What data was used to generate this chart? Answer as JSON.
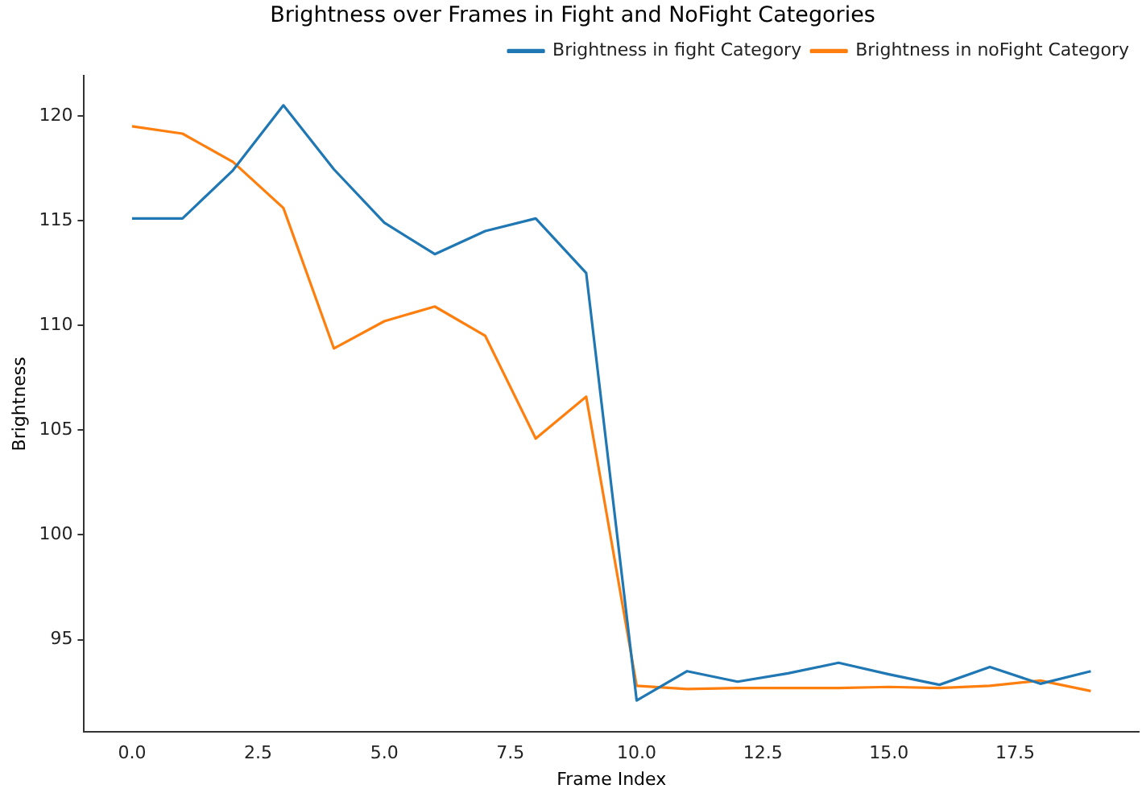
{
  "chart_data": {
    "type": "line",
    "title": "Brightness over Frames in Fight and NoFight Categories",
    "xlabel": "Frame Index",
    "ylabel": "Brightness",
    "x": [
      0,
      1,
      2,
      3,
      4,
      5,
      6,
      7,
      8,
      9,
      10,
      11,
      12,
      13,
      14,
      15,
      16,
      17,
      18,
      19
    ],
    "series": [
      {
        "name": "Brightness in fight Category",
        "color": "#1f77b4",
        "values": [
          115.1,
          115.1,
          117.4,
          120.5,
          117.45,
          114.9,
          113.4,
          114.5,
          115.1,
          112.5,
          92.1,
          93.5,
          93.0,
          93.4,
          93.9,
          93.35,
          92.85,
          93.7,
          92.9,
          93.5
        ]
      },
      {
        "name": "Brightness in noFight Category",
        "color": "#ff7f0e",
        "values": [
          119.5,
          119.15,
          117.8,
          115.6,
          108.9,
          110.2,
          110.9,
          109.5,
          104.6,
          106.6,
          92.8,
          92.65,
          92.7,
          92.7,
          92.7,
          92.75,
          92.7,
          92.8,
          93.05,
          92.55
        ]
      }
    ],
    "xlim": [
      -0.95,
      19.95
    ],
    "xticks": [
      {
        "value": 0,
        "label": "0.0"
      },
      {
        "value": 2.5,
        "label": "2.5"
      },
      {
        "value": 5,
        "label": "5.0"
      },
      {
        "value": 7.5,
        "label": "7.5"
      },
      {
        "value": 10,
        "label": "10.0"
      },
      {
        "value": 12.5,
        "label": "12.5"
      },
      {
        "value": 15,
        "label": "15.0"
      },
      {
        "value": 17.5,
        "label": "17.5"
      }
    ],
    "ylim": [
      90.6,
      121.9
    ],
    "yticks": [
      95,
      100,
      105,
      110,
      115,
      120
    ],
    "legend": "top right",
    "grid": false,
    "marker": "none",
    "line_style": "solid"
  }
}
